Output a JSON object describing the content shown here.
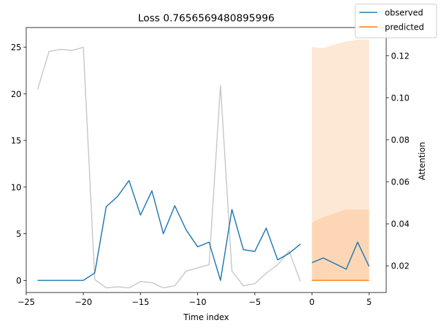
{
  "chart_data": {
    "type": "line",
    "title": "Loss 0.7656569480895996",
    "xlabel": "Time index",
    "ylabel_right": "Attention",
    "xlim": [
      -25,
      6.5
    ],
    "ylim": [
      -1.3,
      27.1
    ],
    "y2lim": [
      0.0073,
      0.1334
    ],
    "x_ticks": [
      -25,
      -20,
      -15,
      -10,
      -5,
      0,
      5
    ],
    "y_ticks": [
      0,
      5,
      10,
      15,
      20,
      25
    ],
    "y2_ticks": [
      0.02,
      0.04,
      0.06,
      0.08,
      0.1,
      0.12
    ],
    "y2_tick_labels": [
      "0.02",
      "0.04",
      "0.06",
      "0.08",
      "0.10",
      "0.12"
    ],
    "legend_position": "top-right",
    "colors": {
      "observed": "#1f77b4",
      "predicted": "#ff7f0e",
      "attention": "#c8c8c8",
      "band_outer": "#fde8d6",
      "band_inner": "#fdd6b6"
    },
    "series": [
      {
        "name": "observed",
        "x": [
          -24,
          -23,
          -22,
          -21,
          -20,
          -19,
          -18,
          -17,
          -16,
          -15,
          -14,
          -13,
          -12,
          -11,
          -10,
          -9,
          -8,
          -7,
          -6,
          -5,
          -4,
          -3,
          -2,
          -1
        ],
        "values": [
          0,
          0,
          0,
          0,
          0,
          0.8,
          7.9,
          9.0,
          10.7,
          7.0,
          9.6,
          5.0,
          8.0,
          5.4,
          3.6,
          4.1,
          0,
          7.6,
          3.3,
          3.1,
          5.6,
          2.2,
          2.9,
          3.9
        ]
      },
      {
        "name": "observed",
        "x": [
          0,
          1,
          2,
          3,
          4,
          5
        ],
        "values": [
          1.9,
          2.4,
          1.8,
          1.2,
          4.1,
          1.5
        ]
      },
      {
        "name": "predicted",
        "x": [
          0,
          1,
          2,
          3,
          4,
          5
        ],
        "values": [
          0,
          0,
          0,
          0,
          0,
          0
        ],
        "band_outer_low": [
          0,
          0,
          0,
          0,
          0,
          0
        ],
        "band_outer_high": [
          25.0,
          24.9,
          25.3,
          25.6,
          25.8,
          25.8
        ],
        "band_inner_low": [
          0,
          0,
          0,
          0,
          0,
          0
        ],
        "band_inner_high": [
          6.2,
          6.8,
          7.2,
          7.6,
          7.6,
          7.6
        ]
      },
      {
        "axis": "right",
        "x": [
          -24,
          -23,
          -22,
          -21,
          -20,
          -19,
          -18,
          -17,
          -16,
          -15,
          -14,
          -13,
          -12,
          -11,
          -10,
          -9,
          -8,
          -7,
          -6,
          -5,
          -4,
          -3,
          -2,
          -1,
          0
        ],
        "values": [
          0.104,
          0.122,
          0.123,
          0.1225,
          0.124,
          0.0135,
          0.0095,
          0.01,
          0.0095,
          0.0125,
          0.012,
          0.0095,
          0.0105,
          0.0175,
          0.019,
          0.0205,
          0.106,
          0.0175,
          0.0105,
          0.0115,
          0.0165,
          0.0205,
          0.027,
          0.0125,
          null
        ]
      }
    ]
  }
}
